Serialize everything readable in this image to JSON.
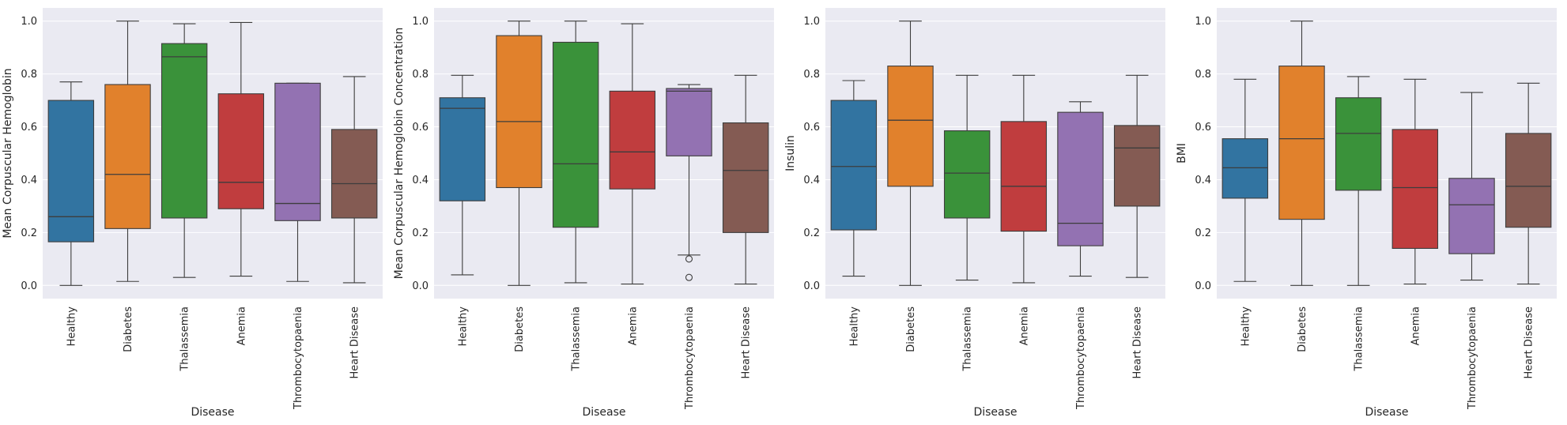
{
  "chart_data": [
    {
      "type": "box",
      "xlabel": "Disease",
      "ylabel": "Mean Corpuscular Hemoglobin",
      "ylim": [
        -0.05,
        1.05
      ],
      "yticks": [
        0.0,
        0.2,
        0.4,
        0.6,
        0.8,
        1.0
      ],
      "grid": true,
      "categories": [
        "Healthy",
        "Diabetes",
        "Thalassemia",
        "Anemia",
        "Thrombocytopaenia",
        "Heart Disease"
      ],
      "colors": [
        "#3274a1",
        "#e1812c",
        "#3a923a",
        "#c03d3e",
        "#9372b2",
        "#845b53"
      ],
      "boxes": [
        {
          "whislo": 0.0,
          "q1": 0.165,
          "med": 0.26,
          "q3": 0.7,
          "whishi": 0.77,
          "fliers": []
        },
        {
          "whislo": 0.015,
          "q1": 0.215,
          "med": 0.42,
          "q3": 0.76,
          "whishi": 1.0,
          "fliers": []
        },
        {
          "whislo": 0.03,
          "q1": 0.255,
          "med": 0.865,
          "q3": 0.915,
          "whishi": 0.99,
          "fliers": []
        },
        {
          "whislo": 0.035,
          "q1": 0.29,
          "med": 0.39,
          "q3": 0.725,
          "whishi": 0.995,
          "fliers": []
        },
        {
          "whislo": 0.015,
          "q1": 0.245,
          "med": 0.31,
          "q3": 0.765,
          "whishi": 0.765,
          "fliers": []
        },
        {
          "whislo": 0.01,
          "q1": 0.255,
          "med": 0.385,
          "q3": 0.59,
          "whishi": 0.79,
          "fliers": []
        }
      ]
    },
    {
      "type": "box",
      "xlabel": "Disease",
      "ylabel": "Mean Corpuscular Hemoglobin Concentration",
      "ylim": [
        -0.05,
        1.05
      ],
      "yticks": [
        0.0,
        0.2,
        0.4,
        0.6,
        0.8,
        1.0
      ],
      "grid": true,
      "categories": [
        "Healthy",
        "Diabetes",
        "Thalassemia",
        "Anemia",
        "Thrombocytopaenia",
        "Heart Disease"
      ],
      "colors": [
        "#3274a1",
        "#e1812c",
        "#3a923a",
        "#c03d3e",
        "#9372b2",
        "#845b53"
      ],
      "boxes": [
        {
          "whislo": 0.04,
          "q1": 0.32,
          "med": 0.67,
          "q3": 0.71,
          "whishi": 0.795,
          "fliers": []
        },
        {
          "whislo": 0.0,
          "q1": 0.37,
          "med": 0.62,
          "q3": 0.945,
          "whishi": 1.0,
          "fliers": []
        },
        {
          "whislo": 0.01,
          "q1": 0.22,
          "med": 0.46,
          "q3": 0.92,
          "whishi": 1.0,
          "fliers": []
        },
        {
          "whislo": 0.005,
          "q1": 0.365,
          "med": 0.505,
          "q3": 0.735,
          "whishi": 0.99,
          "fliers": []
        },
        {
          "whislo": 0.115,
          "q1": 0.49,
          "med": 0.735,
          "q3": 0.745,
          "whishi": 0.76,
          "fliers": [
            0.1,
            0.03
          ]
        },
        {
          "whislo": 0.005,
          "q1": 0.2,
          "med": 0.435,
          "q3": 0.615,
          "whishi": 0.795,
          "fliers": []
        }
      ]
    },
    {
      "type": "box",
      "xlabel": "Disease",
      "ylabel": "Insulin",
      "ylim": [
        -0.05,
        1.05
      ],
      "yticks": [
        0.0,
        0.2,
        0.4,
        0.6,
        0.8,
        1.0
      ],
      "grid": true,
      "categories": [
        "Healthy",
        "Diabetes",
        "Thalassemia",
        "Anemia",
        "Thrombocytopaenia",
        "Heart Disease"
      ],
      "colors": [
        "#3274a1",
        "#e1812c",
        "#3a923a",
        "#c03d3e",
        "#9372b2",
        "#845b53"
      ],
      "boxes": [
        {
          "whislo": 0.035,
          "q1": 0.21,
          "med": 0.45,
          "q3": 0.7,
          "whishi": 0.775,
          "fliers": []
        },
        {
          "whislo": 0.0,
          "q1": 0.375,
          "med": 0.625,
          "q3": 0.83,
          "whishi": 1.0,
          "fliers": []
        },
        {
          "whislo": 0.02,
          "q1": 0.255,
          "med": 0.425,
          "q3": 0.585,
          "whishi": 0.795,
          "fliers": []
        },
        {
          "whislo": 0.01,
          "q1": 0.205,
          "med": 0.375,
          "q3": 0.62,
          "whishi": 0.795,
          "fliers": []
        },
        {
          "whislo": 0.035,
          "q1": 0.15,
          "med": 0.235,
          "q3": 0.655,
          "whishi": 0.695,
          "fliers": []
        },
        {
          "whislo": 0.03,
          "q1": 0.3,
          "med": 0.52,
          "q3": 0.605,
          "whishi": 0.795,
          "fliers": []
        }
      ]
    },
    {
      "type": "box",
      "xlabel": "Disease",
      "ylabel": "BMI",
      "ylim": [
        -0.05,
        1.05
      ],
      "yticks": [
        0.0,
        0.2,
        0.4,
        0.6,
        0.8,
        1.0
      ],
      "grid": true,
      "categories": [
        "Healthy",
        "Diabetes",
        "Thalassemia",
        "Anemia",
        "Thrombocytopaenia",
        "Heart Disease"
      ],
      "colors": [
        "#3274a1",
        "#e1812c",
        "#3a923a",
        "#c03d3e",
        "#9372b2",
        "#845b53"
      ],
      "boxes": [
        {
          "whislo": 0.015,
          "q1": 0.33,
          "med": 0.445,
          "q3": 0.555,
          "whishi": 0.78,
          "fliers": []
        },
        {
          "whislo": 0.0,
          "q1": 0.25,
          "med": 0.555,
          "q3": 0.83,
          "whishi": 1.0,
          "fliers": []
        },
        {
          "whislo": 0.0,
          "q1": 0.36,
          "med": 0.575,
          "q3": 0.71,
          "whishi": 0.79,
          "fliers": []
        },
        {
          "whislo": 0.005,
          "q1": 0.14,
          "med": 0.37,
          "q3": 0.59,
          "whishi": 0.78,
          "fliers": []
        },
        {
          "whislo": 0.02,
          "q1": 0.12,
          "med": 0.305,
          "q3": 0.405,
          "whishi": 0.73,
          "fliers": []
        },
        {
          "whislo": 0.005,
          "q1": 0.22,
          "med": 0.375,
          "q3": 0.575,
          "whishi": 0.765,
          "fliers": []
        }
      ]
    }
  ]
}
